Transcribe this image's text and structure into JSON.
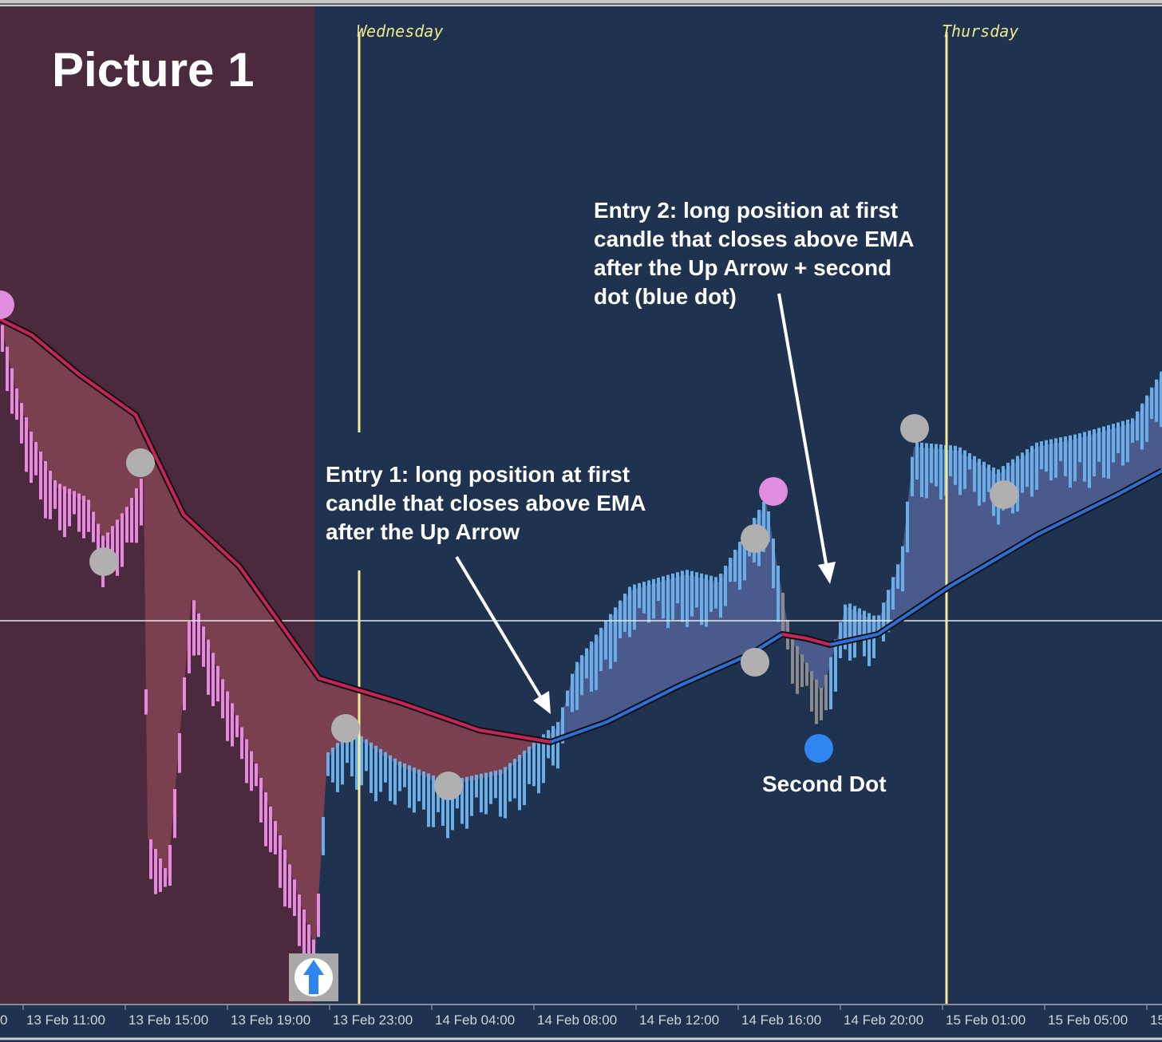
{
  "header": {
    "title": "Picture 1"
  },
  "day_labels": [
    "Wednesday",
    "Thursday"
  ],
  "time_axis": [
    "0",
    "13 Feb 11:00",
    "13 Feb 15:00",
    "13 Feb 19:00",
    "13 Feb 23:00",
    "14 Feb 04:00",
    "14 Feb 08:00",
    "14 Feb 12:00",
    "14 Feb 16:00",
    "14 Feb 20:00",
    "15 Feb 01:00",
    "15 Feb 05:00",
    "15"
  ],
  "annotations": {
    "entry_1": [
      "Entry 1: long position at first",
      "candle that closes above EMA",
      "after the Up Arrow"
    ],
    "entry_2": [
      "Entry 2: long position at first",
      "candle that closes above EMA",
      "after the Up Arrow + second",
      "dot (blue dot)"
    ],
    "second_dot": "Second Dot"
  }
}
